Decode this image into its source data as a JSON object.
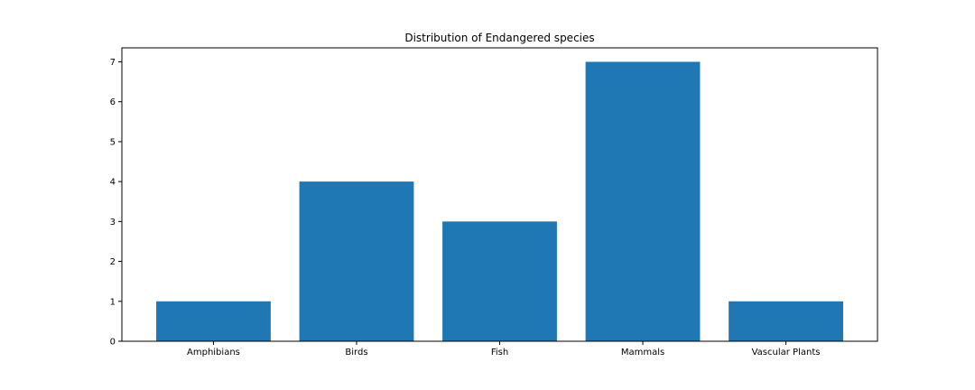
{
  "chart_data": {
    "type": "bar",
    "title": "Distribution of Endangered species",
    "xlabel": "",
    "ylabel": "",
    "categories": [
      "Amphibians",
      "Birds",
      "Fish",
      "Mammals",
      "Vascular Plants"
    ],
    "values": [
      1,
      4,
      3,
      7,
      1
    ],
    "ylim": [
      0,
      7.35
    ],
    "yticks": [
      0,
      1,
      2,
      3,
      4,
      5,
      6,
      7
    ],
    "grid": false,
    "legend": "none",
    "colors": {
      "bar": "#1f77b4",
      "axes": "#000000",
      "background": "#ffffff"
    }
  }
}
